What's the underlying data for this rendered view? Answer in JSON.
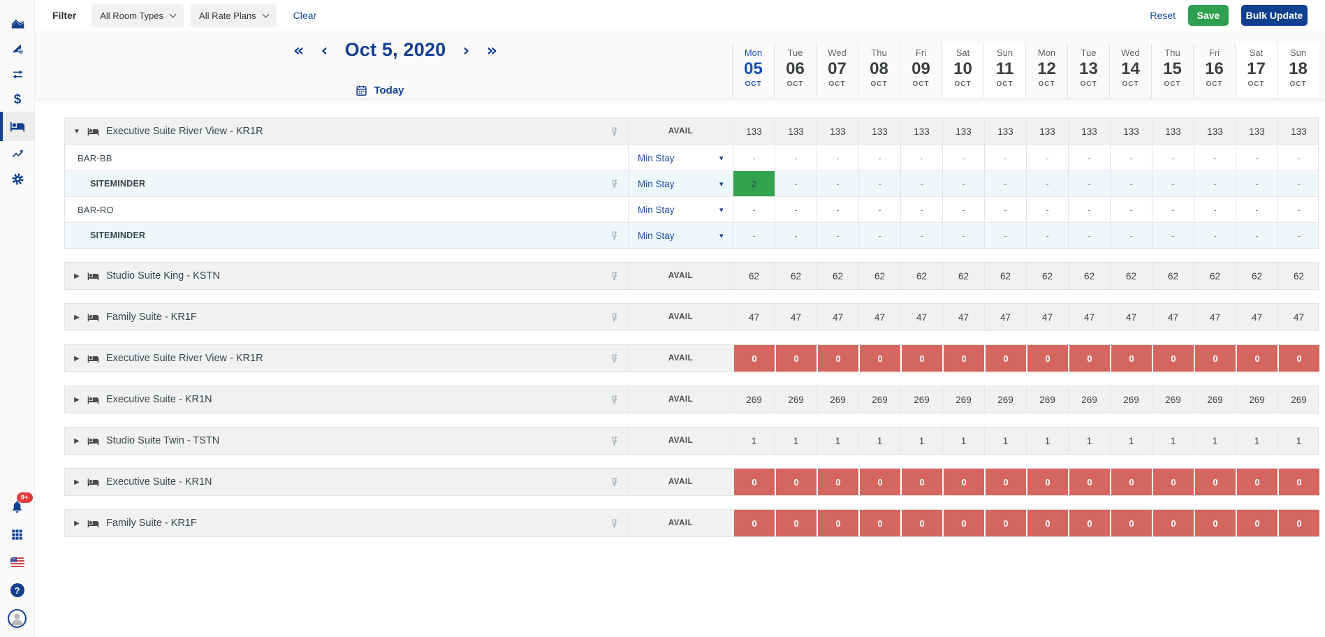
{
  "sidebar": {
    "top_icons": [
      "analytics-area-chart-icon",
      "performance-settings-icon",
      "sync-arrows-icon",
      "rates-dollar-icon",
      "inventory-bed-icon",
      "trends-icon",
      "settings-gear-icon"
    ],
    "active_icon": "inventory-bed-icon",
    "bottom_icons": [
      "notifications-bell-icon",
      "apps-grid-icon",
      "language-us-flag-icon",
      "help-icon",
      "user-avatar"
    ],
    "notification_badge": "9+",
    "dollar_glyph": "$",
    "help_glyph": "?"
  },
  "filter_bar": {
    "filter_label": "Filter",
    "room_types_dropdown": "All Room Types",
    "rate_plans_dropdown": "All Rate Plans",
    "clear_label": "Clear",
    "reset_label": "Reset",
    "save_label": "Save",
    "bulk_update_label": "Bulk Update"
  },
  "date_nav": {
    "prev_page_icon": "«",
    "prev_icon": "‹",
    "current_date": "Oct 5, 2020",
    "next_icon": "›",
    "next_page_icon": "»",
    "today_label": "Today"
  },
  "calendar": {
    "dates": [
      {
        "dow": "Mon",
        "day": "05",
        "month": "OCT",
        "today": true,
        "weekend": false
      },
      {
        "dow": "Tue",
        "day": "06",
        "month": "OCT",
        "today": false,
        "weekend": false
      },
      {
        "dow": "Wed",
        "day": "07",
        "month": "OCT",
        "today": false,
        "weekend": false
      },
      {
        "dow": "Thu",
        "day": "08",
        "month": "OCT",
        "today": false,
        "weekend": false
      },
      {
        "dow": "Fri",
        "day": "09",
        "month": "OCT",
        "today": false,
        "weekend": false
      },
      {
        "dow": "Sat",
        "day": "10",
        "month": "OCT",
        "today": false,
        "weekend": true
      },
      {
        "dow": "Sun",
        "day": "11",
        "month": "OCT",
        "today": false,
        "weekend": true
      },
      {
        "dow": "Mon",
        "day": "12",
        "month": "OCT",
        "today": false,
        "weekend": false
      },
      {
        "dow": "Tue",
        "day": "13",
        "month": "OCT",
        "today": false,
        "weekend": false
      },
      {
        "dow": "Wed",
        "day": "14",
        "month": "OCT",
        "today": false,
        "weekend": false
      },
      {
        "dow": "Thu",
        "day": "15",
        "month": "OCT",
        "today": false,
        "weekend": false
      },
      {
        "dow": "Fri",
        "day": "16",
        "month": "OCT",
        "today": false,
        "weekend": false
      },
      {
        "dow": "Sat",
        "day": "17",
        "month": "OCT",
        "today": false,
        "weekend": true
      },
      {
        "dow": "Sun",
        "day": "18",
        "month": "OCT",
        "today": false,
        "weekend": true
      }
    ]
  },
  "table": {
    "avail_label": "AVAIL",
    "min_stay_label": "Min Stay",
    "groups": [
      {
        "name": "Executive Suite River View - KR1R",
        "expanded": true,
        "avail_status": "normal",
        "avail": [
          "133",
          "133",
          "133",
          "133",
          "133",
          "133",
          "133",
          "133",
          "133",
          "133",
          "133",
          "133",
          "133",
          "133"
        ],
        "rate_plans": [
          {
            "label": "BAR-BB",
            "level": 1,
            "lightning": false,
            "cells": [
              "-",
              "-",
              "-",
              "-",
              "-",
              "-",
              "-",
              "-",
              "-",
              "-",
              "-",
              "-",
              "-",
              "-"
            ]
          },
          {
            "label": "SITEMINDER",
            "level": 2,
            "lightning": true,
            "cells": [
              {
                "v": "2",
                "bg": "green"
              },
              "-",
              "-",
              "-",
              "-",
              "-",
              "-",
              "-",
              "-",
              "-",
              "-",
              "-",
              "-",
              "-"
            ]
          },
          {
            "label": "BAR-RO",
            "level": 1,
            "lightning": false,
            "cells": [
              "-",
              "-",
              "-",
              "-",
              "-",
              "-",
              "-",
              "-",
              "-",
              "-",
              "-",
              "-",
              "-",
              "-"
            ]
          },
          {
            "label": "SITEMINDER",
            "level": 2,
            "lightning": true,
            "cells": [
              "-",
              "-",
              "-",
              "-",
              "-",
              "-",
              "-",
              "-",
              "-",
              "-",
              "-",
              "-",
              "-",
              "-"
            ]
          }
        ]
      },
      {
        "name": "Studio Suite King - KSTN",
        "expanded": false,
        "avail_status": "normal",
        "avail": [
          "62",
          "62",
          "62",
          "62",
          "62",
          "62",
          "62",
          "62",
          "62",
          "62",
          "62",
          "62",
          "62",
          "62"
        ]
      },
      {
        "name": "Family Suite - KR1F",
        "expanded": false,
        "avail_status": "normal",
        "avail": [
          "47",
          "47",
          "47",
          "47",
          "47",
          "47",
          "47",
          "47",
          "47",
          "47",
          "47",
          "47",
          "47",
          "47"
        ]
      },
      {
        "name": "Executive Suite River View - KR1R",
        "expanded": false,
        "avail_status": "closed",
        "avail": [
          "0",
          "0",
          "0",
          "0",
          "0",
          "0",
          "0",
          "0",
          "0",
          "0",
          "0",
          "0",
          "0",
          "0"
        ]
      },
      {
        "name": "Executive Suite - KR1N",
        "expanded": false,
        "avail_status": "normal",
        "avail": [
          "269",
          "269",
          "269",
          "269",
          "269",
          "269",
          "269",
          "269",
          "269",
          "269",
          "269",
          "269",
          "269",
          "269"
        ]
      },
      {
        "name": "Studio Suite Twin - TSTN",
        "expanded": false,
        "avail_status": "normal",
        "avail": [
          "1",
          "1",
          "1",
          "1",
          "1",
          "1",
          "1",
          "1",
          "1",
          "1",
          "1",
          "1",
          "1",
          "1"
        ]
      },
      {
        "name": "Executive Suite - KR1N",
        "expanded": false,
        "avail_status": "closed",
        "avail": [
          "0",
          "0",
          "0",
          "0",
          "0",
          "0",
          "0",
          "0",
          "0",
          "0",
          "0",
          "0",
          "0",
          "0"
        ]
      },
      {
        "name": "Family Suite - KR1F",
        "expanded": false,
        "avail_status": "closed",
        "avail": [
          "0",
          "0",
          "0",
          "0",
          "0",
          "0",
          "0",
          "0",
          "0",
          "0",
          "0",
          "0",
          "0",
          "0"
        ]
      }
    ]
  },
  "colors": {
    "brand_navy": "#12418f",
    "today_blue": "#1450b4",
    "save_green": "#2ea150",
    "cell_green": "#2fa34d",
    "closed_red": "#d5655f",
    "badge_red": "#e23d3d",
    "siteminder_row_bg": "#edf8fb",
    "group_header_bg": "#f1f1f1"
  }
}
